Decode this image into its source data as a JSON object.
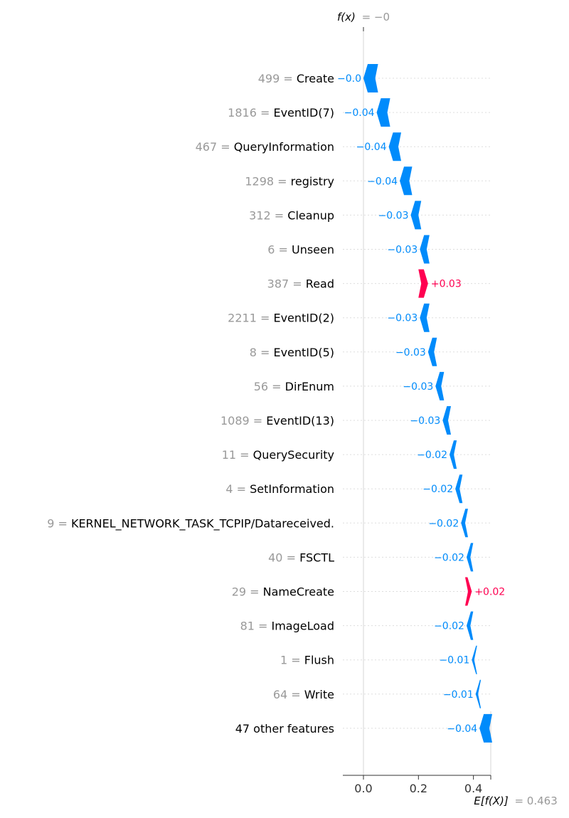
{
  "chart_data": {
    "type": "waterfall",
    "fx_label": "f(x)",
    "fx_value": "= −0",
    "base_label": "E[f(X)]",
    "base_value": "= 0.463",
    "xlim": [
      -0.075,
      0.463
    ],
    "xticks": [
      {
        "value": 0.0,
        "label": "0.0"
      },
      {
        "value": 0.2,
        "label": "0.2"
      },
      {
        "value": 0.4,
        "label": "0.4"
      }
    ],
    "colors": {
      "negative": "#008bfb",
      "positive": "#ff0051"
    },
    "rows": [
      {
        "feature_value": "499",
        "feature": "Create",
        "start": 0.048,
        "end": 0.0,
        "label": "−0.0"
      },
      {
        "feature_value": "1816",
        "feature": "EventID(7)",
        "start": 0.092,
        "end": 0.048,
        "label": "−0.04"
      },
      {
        "feature_value": "467",
        "feature": "QueryInformation",
        "start": 0.132,
        "end": 0.092,
        "label": "−0.04"
      },
      {
        "feature_value": "1298",
        "feature": "registry",
        "start": 0.172,
        "end": 0.132,
        "label": "−0.04"
      },
      {
        "feature_value": "312",
        "feature": "Cleanup",
        "start": 0.205,
        "end": 0.172,
        "label": "−0.03"
      },
      {
        "feature_value": "6",
        "feature": "Unseen",
        "start": 0.235,
        "end": 0.205,
        "label": "−0.03"
      },
      {
        "feature_value": "387",
        "feature": "Read",
        "start": 0.205,
        "end": 0.235,
        "label": "+0.03"
      },
      {
        "feature_value": "2211",
        "feature": "EventID(2)",
        "start": 0.235,
        "end": 0.205,
        "label": "−0.03"
      },
      {
        "feature_value": "8",
        "feature": "EventID(5)",
        "start": 0.262,
        "end": 0.235,
        "label": "−0.03"
      },
      {
        "feature_value": "56",
        "feature": "DirEnum",
        "start": 0.288,
        "end": 0.262,
        "label": "−0.03"
      },
      {
        "feature_value": "1089",
        "feature": "EventID(13)",
        "start": 0.313,
        "end": 0.288,
        "label": "−0.03"
      },
      {
        "feature_value": "11",
        "feature": "QuerySecurity",
        "start": 0.334,
        "end": 0.313,
        "label": "−0.02"
      },
      {
        "feature_value": "4",
        "feature": "SetInformation",
        "start": 0.355,
        "end": 0.334,
        "label": "−0.02"
      },
      {
        "feature_value": "9",
        "feature": "KERNEL_NETWORK_TASK_TCPIP/Datareceived.",
        "start": 0.375,
        "end": 0.355,
        "label": "−0.02"
      },
      {
        "feature_value": "40",
        "feature": "FSCTL",
        "start": 0.394,
        "end": 0.375,
        "label": "−0.02"
      },
      {
        "feature_value": "29",
        "feature": "NameCreate",
        "start": 0.375,
        "end": 0.394,
        "label": "+0.02"
      },
      {
        "feature_value": "81",
        "feature": "ImageLoad",
        "start": 0.394,
        "end": 0.375,
        "label": "−0.02"
      },
      {
        "feature_value": "1",
        "feature": "Flush",
        "start": 0.408,
        "end": 0.394,
        "label": "−0.01"
      },
      {
        "feature_value": "64",
        "feature": "Write",
        "start": 0.422,
        "end": 0.408,
        "label": "−0.01"
      },
      {
        "feature_value": "",
        "feature": "47 other features",
        "start": 0.463,
        "end": 0.422,
        "label": "−0.04"
      }
    ]
  }
}
